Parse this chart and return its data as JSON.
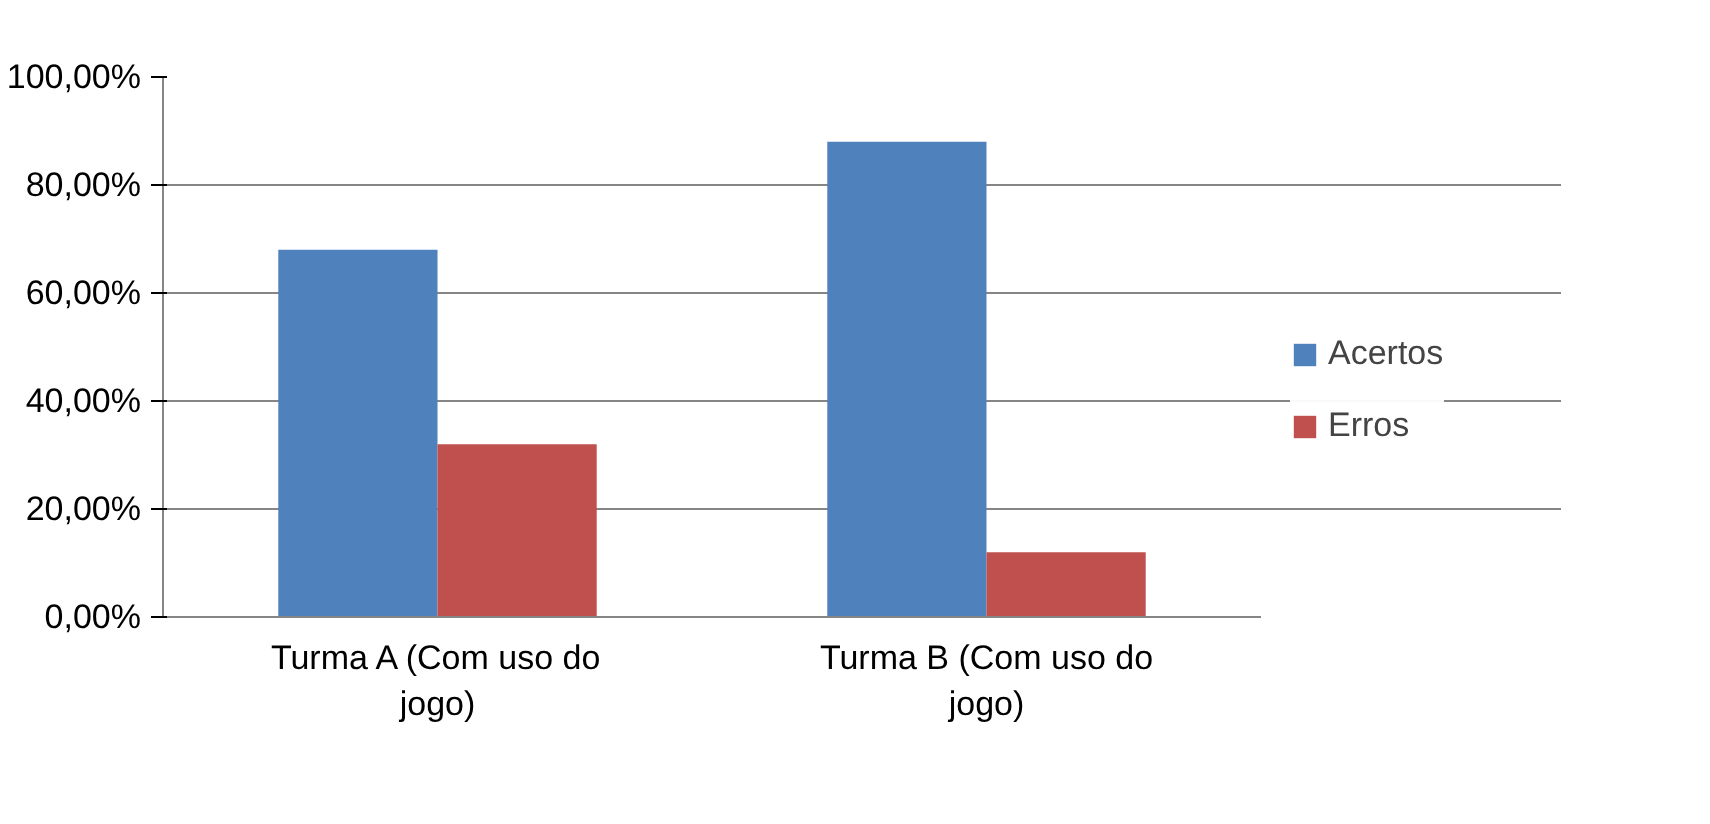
{
  "chart_data": {
    "type": "bar",
    "categories": [
      "Turma A (Com uso do jogo)",
      "Turma B (Com uso do jogo)"
    ],
    "series": [
      {
        "name": "Acertos",
        "color": "#4f81bd",
        "values": [
          68,
          88
        ]
      },
      {
        "name": "Erros",
        "color": "#c0504d",
        "values": [
          32,
          12
        ]
      }
    ],
    "ylim": [
      0,
      100
    ],
    "yticks": [
      {
        "value": 0,
        "label": "0,00%"
      },
      {
        "value": 20,
        "label": "20,00%"
      },
      {
        "value": 40,
        "label": "40,00%"
      },
      {
        "value": 60,
        "label": "60,00%"
      },
      {
        "value": 80,
        "label": "80,00%"
      },
      {
        "value": 100,
        "label": "100,00%"
      }
    ],
    "grid": "y",
    "legend": "right"
  }
}
